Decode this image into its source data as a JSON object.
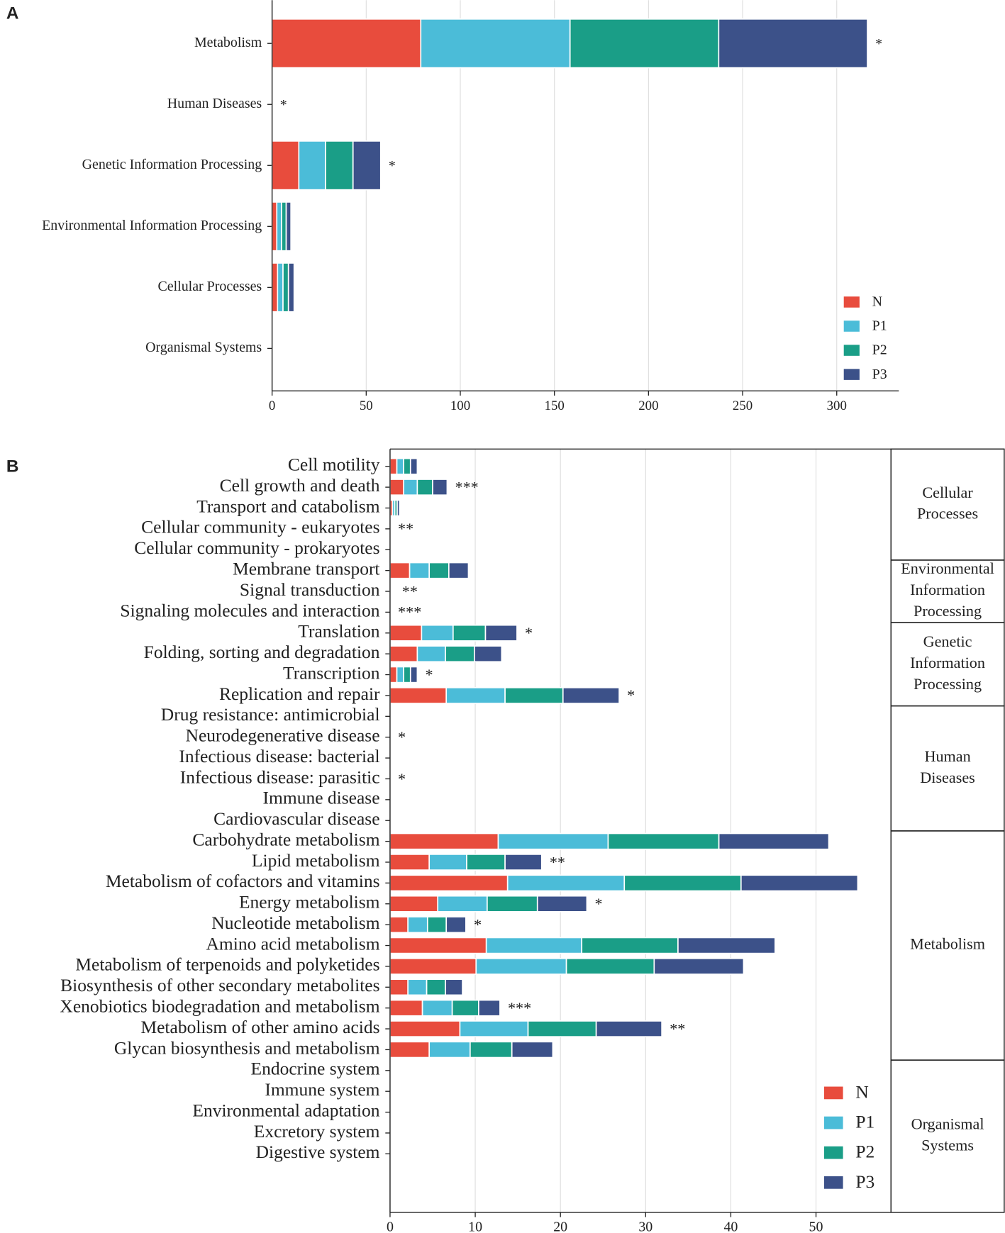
{
  "chart_data": [
    {
      "type": "bar",
      "orientation": "horizontal",
      "stacked": true,
      "panel_label": "A",
      "categories": [
        "Metabolism",
        "Human Diseases",
        "Genetic Information Processing",
        "Environmental Information Processing",
        "Cellular Processes",
        "Organismal Systems"
      ],
      "series": [
        {
          "name": "N",
          "color": "#e84c3d",
          "values": [
            79,
            0,
            14.2,
            2.5,
            2.9,
            0
          ]
        },
        {
          "name": "P1",
          "color": "#4bbcd8",
          "values": [
            79.3,
            0,
            14.2,
            2.5,
            2.9,
            0
          ]
        },
        {
          "name": "P2",
          "color": "#1a9e87",
          "values": [
            79,
            0,
            14.6,
            2.5,
            2.9,
            0
          ]
        },
        {
          "name": "P3",
          "color": "#3c5189",
          "values": [
            79,
            0,
            14.7,
            2.5,
            3,
            0
          ]
        }
      ],
      "annotations": [
        "*",
        "*",
        "*",
        null,
        null,
        null
      ],
      "xlim": [
        0,
        333
      ],
      "xticks": [
        0,
        50,
        100,
        150,
        200,
        250,
        300
      ],
      "grid": true,
      "legend": "lower right"
    },
    {
      "type": "bar",
      "orientation": "horizontal",
      "stacked": true,
      "panel_label": "B",
      "categories": [
        "Cell motility",
        "Cell growth and death",
        "Transport and catabolism",
        "Cellular community - eukaryotes",
        "Cellular community - prokaryotes",
        "Membrane transport",
        "Signal transduction",
        "Signaling molecules and interaction",
        "Translation",
        "Folding, sorting and degradation",
        "Transcription",
        "Replication and repair",
        "Drug resistance: antimicrobial",
        "Neurodegenerative disease",
        "Infectious disease: bacterial",
        "Infectious disease: parasitic",
        "Immune disease",
        "Cardiovascular disease",
        "Carbohydrate metabolism",
        "Lipid metabolism",
        "Metabolism of cofactors and vitamins",
        "Energy metabolism",
        "Nucleotide metabolism",
        "Amino acid metabolism",
        "Metabolism of terpenoids and polyketides",
        "Biosynthesis of other secondary metabolites",
        "Xenobiotics biodegradation and metabolism",
        "Metabolism of other amino acids",
        "Glycan biosynthesis and metabolism",
        "Endocrine system",
        "Immune system",
        "Environmental adaptation",
        "Excretory system",
        "Digestive system"
      ],
      "series": [
        {
          "name": "N",
          "color": "#e84c3d",
          "values": [
            0.8,
            1.6,
            0.28,
            0,
            0,
            2.3,
            0.12,
            0,
            3.7,
            3.2,
            0.8,
            6.6,
            0,
            0,
            0,
            0,
            0,
            0,
            12.7,
            4.6,
            13.8,
            5.6,
            2.1,
            11.3,
            10.1,
            2.1,
            3.8,
            8.2,
            4.6,
            0,
            0,
            0,
            0,
            0
          ]
        },
        {
          "name": "P1",
          "color": "#4bbcd8",
          "values": [
            0.8,
            1.6,
            0.28,
            0,
            0,
            2.3,
            0.12,
            0,
            3.7,
            3.3,
            0.8,
            6.9,
            0,
            0,
            0,
            0,
            0,
            0,
            12.9,
            4.4,
            13.7,
            5.8,
            2.3,
            11.2,
            10.6,
            2.2,
            3.5,
            8,
            4.8,
            0,
            0,
            0,
            0,
            0
          ]
        },
        {
          "name": "P2",
          "color": "#1a9e87",
          "values": [
            0.8,
            1.8,
            0.28,
            0,
            0,
            2.3,
            0.12,
            0,
            3.8,
            3.4,
            0.8,
            6.8,
            0,
            0,
            0,
            0,
            0,
            0,
            13,
            4.5,
            13.7,
            5.9,
            2.2,
            11.3,
            10.3,
            2.2,
            3.1,
            8,
            4.9,
            0,
            0,
            0,
            0,
            0
          ]
        },
        {
          "name": "P3",
          "color": "#3c5189",
          "values": [
            0.8,
            1.7,
            0.28,
            0,
            0,
            2.3,
            0.12,
            0,
            3.7,
            3.2,
            0.8,
            6.6,
            0,
            0,
            0,
            0,
            0,
            0,
            12.9,
            4.3,
            13.7,
            5.8,
            2.3,
            11.4,
            10.5,
            2,
            2.5,
            7.7,
            4.8,
            0,
            0,
            0,
            0,
            0
          ]
        }
      ],
      "annotations": [
        null,
        "***",
        null,
        "**",
        null,
        null,
        "**",
        "***",
        "*",
        null,
        "*",
        "*",
        null,
        "*",
        null,
        "*",
        null,
        null,
        null,
        "**",
        null,
        "*",
        "*",
        null,
        null,
        null,
        "***",
        "**",
        null,
        null,
        null,
        null,
        null,
        null
      ],
      "groups": [
        {
          "name": [
            "Cellular",
            "Processes"
          ],
          "size": 5
        },
        {
          "name": [
            "Environmental",
            "Information",
            "Processing"
          ],
          "size": 3
        },
        {
          "name": [
            "Genetic",
            "Information",
            "Processing"
          ],
          "size": 4
        },
        {
          "name": [
            "Human",
            "Diseases"
          ],
          "size": 6
        },
        {
          "name": [
            "Metabolism"
          ],
          "size": 11
        },
        {
          "name": [
            "Organismal",
            "Systems"
          ],
          "size": 5
        }
      ],
      "xlim": [
        0,
        58.8
      ],
      "xticks": [
        0,
        10,
        20,
        30,
        40,
        50
      ],
      "grid": true,
      "legend": "lower right"
    }
  ]
}
